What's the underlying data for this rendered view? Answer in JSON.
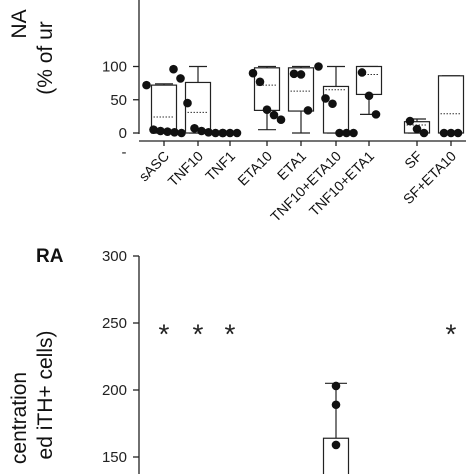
{
  "chart_data": [
    {
      "type": "box",
      "ylabel_lines": [
        "NA",
        "(% of ur"
      ],
      "yticks": [
        0,
        50,
        100
      ],
      "ylim": [
        0,
        100
      ],
      "x_axis_minor_label": "-",
      "categories": [
        "sASC",
        "TNF10",
        "TNF1",
        "ETA10",
        "ETA1",
        "TNF10+ETA10",
        "TNF10+ETA1",
        "SF",
        "SF+ETA10"
      ],
      "groups": [
        {
          "category": "sASC",
          "box": [
            0,
            72
          ],
          "mean": 24,
          "whisker": [
            0,
            74
          ],
          "points": [
            72,
            5,
            3,
            2,
            1,
            0
          ]
        },
        {
          "category": "TNF10",
          "box": [
            0,
            76
          ],
          "mean": 31,
          "whisker": [
            0,
            100
          ],
          "points": [
            96,
            82,
            45,
            7,
            3,
            1,
            0,
            0
          ]
        },
        {
          "category": "TNF1",
          "box": null,
          "mean": null,
          "whisker": null,
          "points": [
            0,
            0,
            0
          ]
        },
        {
          "category": "ETA10",
          "box": [
            34,
            98
          ],
          "mean": 72,
          "whisker": [
            5,
            100
          ],
          "points": [
            90,
            77,
            35,
            27,
            20
          ]
        },
        {
          "category": "ETA1",
          "box": [
            33,
            98
          ],
          "mean": 63,
          "whisker": [
            0,
            100
          ],
          "points": [
            89,
            88,
            34
          ]
        },
        {
          "category": "TNF10+ETA10",
          "box": [
            0,
            70
          ],
          "mean": 65,
          "whisker": [
            0,
            100
          ],
          "points": [
            100,
            52,
            44,
            0,
            0,
            0
          ]
        },
        {
          "category": "TNF10+ETA1",
          "box": [
            58,
            100
          ],
          "mean": 88,
          "whisker": [
            28,
            100
          ],
          "points": [
            91,
            56,
            28
          ]
        },
        {
          "category": "SF",
          "box": [
            0,
            17
          ],
          "mean": 12,
          "whisker": [
            0,
            21
          ],
          "points": [
            18,
            6,
            0
          ]
        },
        {
          "category": "SF+ETA10",
          "box": [
            0,
            86
          ],
          "mean": 29,
          "whisker": [
            0,
            86
          ],
          "points": [
            0,
            0,
            0
          ]
        }
      ]
    },
    {
      "type": "box",
      "panel_label": "RA",
      "ylabel_lines": [
        "centration",
        "ed iTH+ cells)"
      ],
      "yticks": [
        150,
        200,
        250,
        300
      ],
      "ylim": [
        140,
        300
      ],
      "annotations": [
        {
          "text": "*",
          "category_index": 0,
          "y": 248
        },
        {
          "text": "*",
          "category_index": 1,
          "y": 248
        },
        {
          "text": "*",
          "category_index": 2,
          "y": 248
        },
        {
          "text": "*",
          "category_index": 8,
          "y": 248
        }
      ],
      "groups": [
        {
          "category_index": 5,
          "box": [
            140,
            164
          ],
          "mean": null,
          "whisker": [
            140,
            205
          ],
          "points": [
            203,
            189,
            159
          ]
        }
      ]
    }
  ]
}
